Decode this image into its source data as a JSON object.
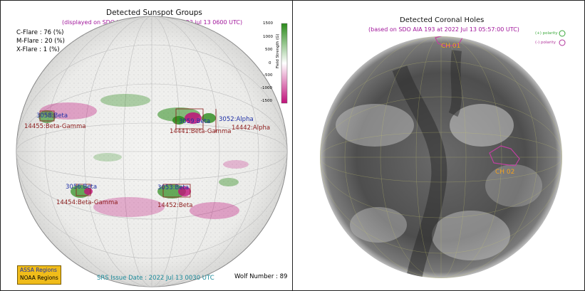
{
  "left_panel": {
    "title": "Detected Sunspot Groups",
    "subtitle": "(displayed on SDO HMI Magnetogram at 2022 jul 13 0600 UTC)",
    "flare_probabilities": [
      {
        "label": "C-Flare : 76 (%)"
      },
      {
        "label": "M-Flare : 20 (%)"
      },
      {
        "label": "X-Flare : 1 (%)"
      }
    ],
    "colorbar": {
      "label": "Field Strength (G)",
      "ticks": [
        "1500",
        "1000",
        "500",
        "0",
        "-500",
        "-1000",
        "-1500"
      ],
      "top_color": "#2a8a1a",
      "bottom_color": "#c0117a"
    },
    "regions": [
      {
        "assa": "3058:Beta",
        "noaa": "14455:Beta-Gamma"
      },
      {
        "assa": "3059:Beta",
        "noaa": "14441:Beta-Gamma"
      },
      {
        "assa": "3052:Alpha",
        "noaa": "14442:Alpha"
      },
      {
        "assa": "3056:Beta",
        "noaa": "14454:Beta-Gamma"
      },
      {
        "assa": "3053:Beta",
        "noaa": "14452:Beta"
      }
    ],
    "legend": {
      "assa": "ASSA Regions",
      "noaa": "NOAA Regions",
      "color": "#f0bc1a"
    },
    "issue_date": "SRS Issue Date : 2022 Jul 13 0030 UTC",
    "wolf_number": "Wolf Number : 89"
  },
  "right_panel": {
    "title": "Detected Coronal Holes",
    "subtitle": "(based on SDO AIA 193 at 2022 Jul 13 05:57:00 UTC)",
    "polarity_legend": [
      {
        "label": "(+) polarity",
        "color": "#3aa83a"
      },
      {
        "label": "(-) polarity",
        "color": "#b0329a"
      }
    ],
    "holes": [
      {
        "label": "CH 01"
      },
      {
        "label": "CH 02"
      }
    ]
  }
}
